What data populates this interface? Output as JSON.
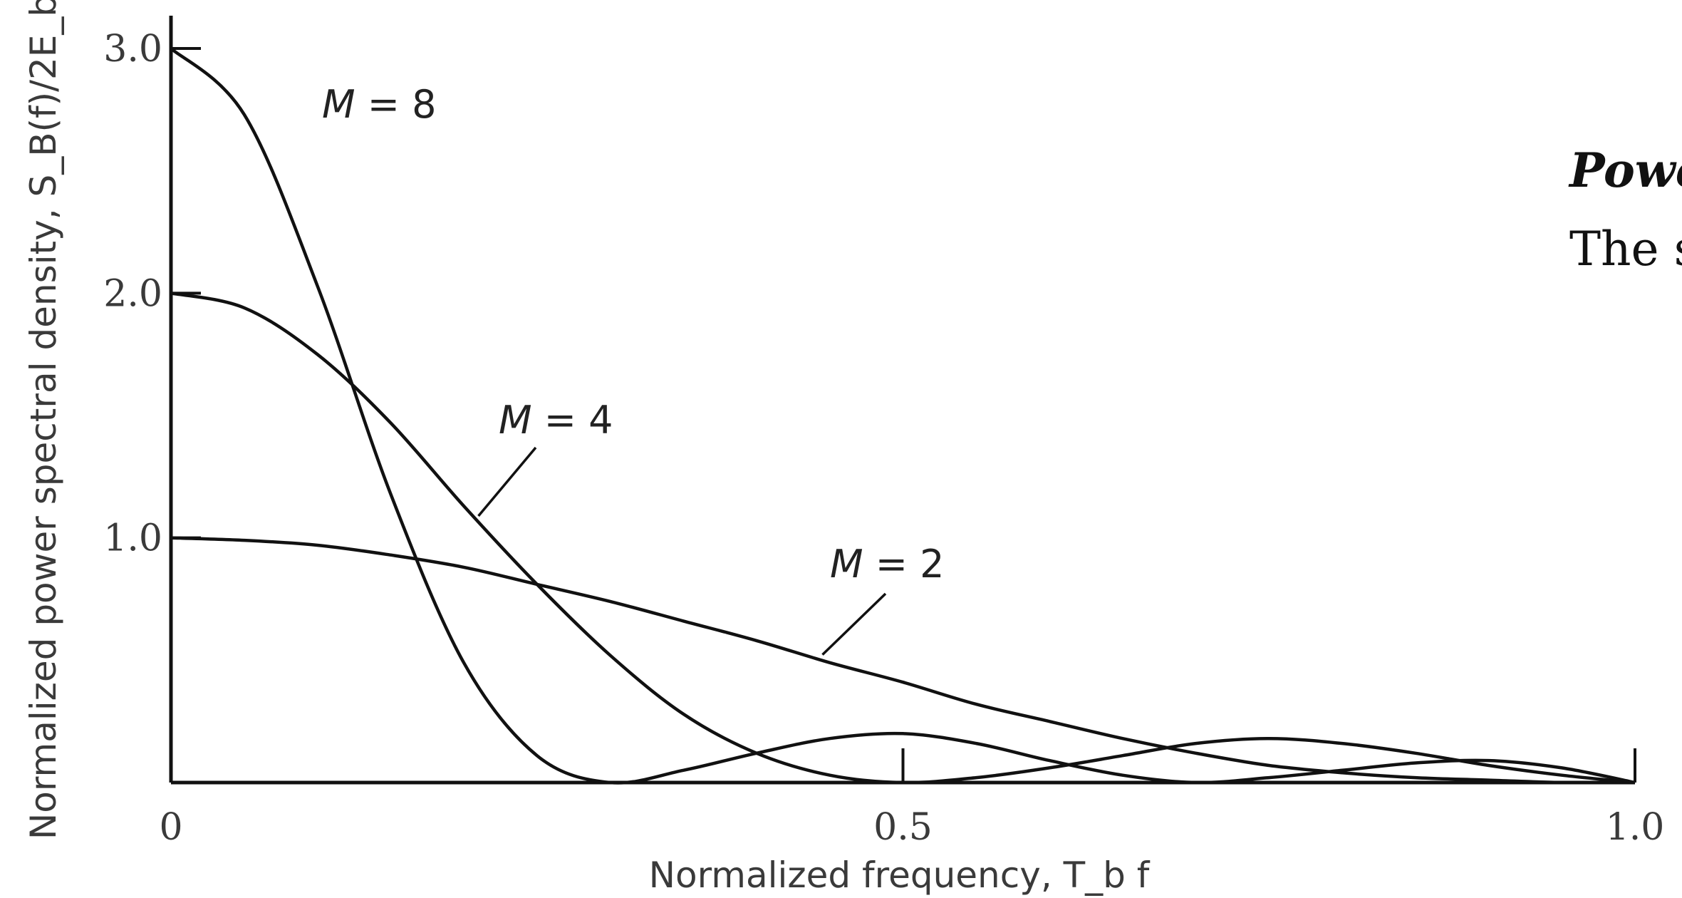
{
  "chart_data": {
    "type": "line",
    "xlabel": "Normalized frequency, T_b f",
    "ylabel": "Normalized power spectral density, S_B(f)/2E_b",
    "xlim": [
      0,
      1.0
    ],
    "ylim": [
      0,
      3.0
    ],
    "x_ticks": [
      "0",
      "0.5",
      "1.0"
    ],
    "x_tick_values": [
      0,
      0.5,
      1.0
    ],
    "y_ticks": [
      "1.0",
      "2.0",
      "3.0"
    ],
    "y_tick_values": [
      1.0,
      2.0,
      3.0
    ],
    "grid": false,
    "series": [
      {
        "name": "M = 2",
        "label": "M = 2",
        "x": [
          0,
          0.05,
          0.1,
          0.15,
          0.2,
          0.25,
          0.3,
          0.35,
          0.4,
          0.45,
          0.5,
          0.55,
          0.6,
          0.65,
          0.7,
          0.75,
          0.8,
          0.85,
          0.9,
          0.95,
          1.0
        ],
        "y": [
          1.0,
          0.99,
          0.97,
          0.93,
          0.88,
          0.81,
          0.74,
          0.66,
          0.58,
          0.49,
          0.41,
          0.32,
          0.25,
          0.18,
          0.12,
          0.07,
          0.04,
          0.02,
          0.01,
          0.0,
          0.0
        ]
      },
      {
        "name": "M = 4",
        "label": "M = 4",
        "x": [
          0,
          0.05,
          0.1,
          0.15,
          0.2,
          0.25,
          0.3,
          0.35,
          0.4,
          0.45,
          0.5,
          0.55,
          0.6,
          0.65,
          0.7,
          0.75,
          0.8,
          0.85,
          0.9,
          0.95,
          1.0
        ],
        "y": [
          2.0,
          1.94,
          1.75,
          1.47,
          1.13,
          0.81,
          0.52,
          0.28,
          0.12,
          0.03,
          0.0,
          0.02,
          0.06,
          0.11,
          0.16,
          0.18,
          0.16,
          0.12,
          0.07,
          0.03,
          0.0
        ]
      },
      {
        "name": "M = 8",
        "label": "M = 8",
        "x": [
          0,
          0.05,
          0.1,
          0.15,
          0.2,
          0.25,
          0.3,
          0.35,
          0.4,
          0.45,
          0.5,
          0.55,
          0.6,
          0.65,
          0.7,
          0.75,
          0.8,
          0.85,
          0.9,
          0.95,
          1.0
        ],
        "y": [
          3.0,
          2.73,
          2.03,
          1.18,
          0.49,
          0.11,
          0.0,
          0.05,
          0.12,
          0.18,
          0.2,
          0.16,
          0.09,
          0.03,
          0.0,
          0.02,
          0.05,
          0.08,
          0.09,
          0.06,
          0.0
        ]
      }
    ],
    "annotations": [
      {
        "text": "M = 8",
        "series": "M = 8"
      },
      {
        "text": "M = 4",
        "series": "M = 4",
        "leader_to_x": 0.21
      },
      {
        "text": "M = 2",
        "series": "M = 2",
        "leader_to_x": 0.445
      }
    ]
  },
  "side_text": {
    "heading": "Powe",
    "body": "The s"
  }
}
